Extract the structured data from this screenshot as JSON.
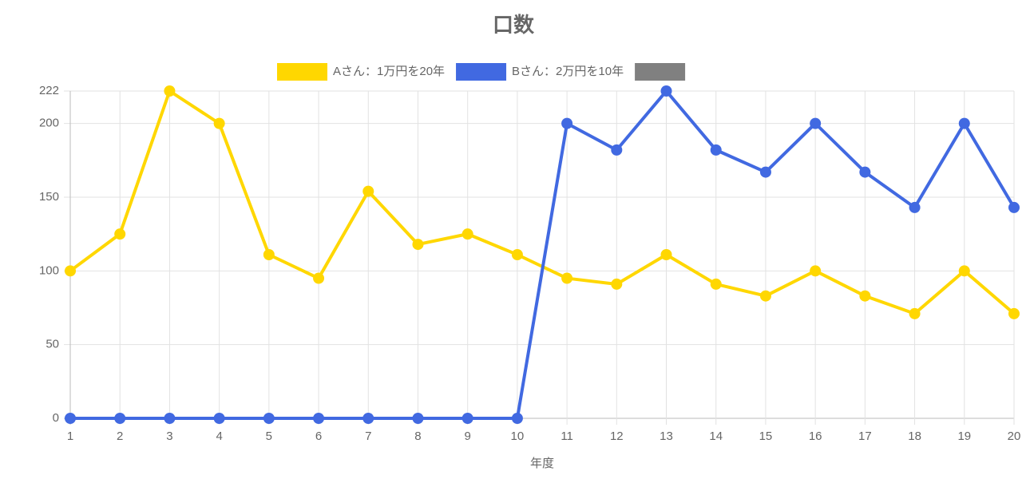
{
  "chart_data": {
    "type": "line",
    "title": "口数",
    "xlabel": "年度",
    "categories": [
      "1",
      "2",
      "3",
      "4",
      "5",
      "6",
      "7",
      "8",
      "9",
      "10",
      "11",
      "12",
      "13",
      "14",
      "15",
      "16",
      "17",
      "18",
      "19",
      "20"
    ],
    "series": [
      {
        "name": "Aさん：1万円を20年",
        "color": "#FFD700",
        "values": [
          100,
          125,
          222,
          200,
          111,
          95,
          154,
          118,
          125,
          111,
          95,
          91,
          111,
          91,
          83,
          100,
          83,
          71,
          100,
          71
        ]
      },
      {
        "name": "Bさん：2万円を10年",
        "color": "#4169E1",
        "values": [
          0,
          0,
          0,
          0,
          0,
          0,
          0,
          0,
          0,
          0,
          200,
          182,
          222,
          182,
          167,
          200,
          167,
          143,
          200,
          143
        ]
      }
    ],
    "ylim": [
      0,
      222
    ],
    "yticks": [
      0,
      50,
      100,
      150,
      200,
      222
    ],
    "grid": true
  }
}
